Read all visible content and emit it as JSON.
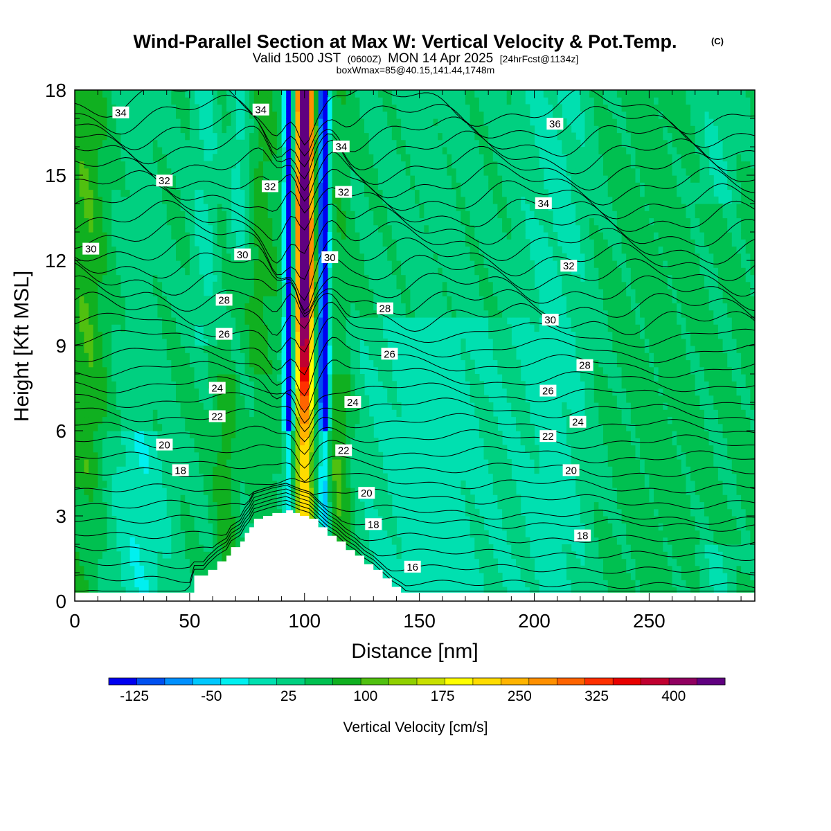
{
  "title": {
    "main": "Wind-Parallel Section at Max W: Vertical Velocity & Pot.Temp.",
    "copyright": "(C)",
    "valid_prefix": "Valid 1500 JST",
    "valid_utc": "(0600Z)",
    "valid_date": "MON 14 Apr 2025",
    "forecast": "[24hrFcst@1134z]",
    "box_info": "boxWmax=85@40.15,141.44,1748m"
  },
  "chart_data": {
    "type": "heatmap",
    "xlabel": "Distance [nm]",
    "ylabel": "Height [Kft MSL]",
    "xlim": [
      0,
      296
    ],
    "ylim": [
      0,
      18
    ],
    "x_ticks": [
      0,
      50,
      100,
      150,
      200,
      250
    ],
    "y_ticks": [
      0,
      3,
      6,
      9,
      12,
      15,
      18
    ],
    "colorbar": {
      "label": "Vertical Velocity [cm/s]",
      "range": [
        -150,
        450
      ],
      "step": 25,
      "tick_labels": [
        "-125",
        "-50",
        "25",
        "100",
        "175",
        "250",
        "325",
        "400"
      ],
      "tick_values": [
        -125,
        -50,
        25,
        100,
        175,
        250,
        325,
        400
      ],
      "colors": [
        "#0000f0",
        "#0050f0",
        "#0090ff",
        "#00c8ff",
        "#00f0f0",
        "#00e0b0",
        "#00d080",
        "#00c050",
        "#10b020",
        "#50c010",
        "#90d000",
        "#c8e000",
        "#ffff00",
        "#ffdc00",
        "#ffb400",
        "#ff9000",
        "#ff6400",
        "#ff3000",
        "#e80000",
        "#c00030",
        "#900060",
        "#600080"
      ]
    },
    "terrain": {
      "x": [
        46,
        50,
        52,
        56,
        58,
        62,
        66,
        68,
        72,
        74,
        76,
        78,
        82,
        86,
        92,
        95,
        98,
        102,
        106,
        110,
        114,
        118,
        122,
        126,
        130,
        134,
        138,
        142,
        146
      ],
      "top": [
        0,
        0.3,
        0.9,
        0.9,
        1.1,
        1.4,
        1.6,
        1.9,
        2.1,
        2.4,
        2.6,
        2.9,
        3.0,
        3.1,
        3.2,
        3.1,
        3.0,
        2.9,
        2.6,
        2.3,
        2.1,
        1.8,
        1.6,
        1.3,
        1.1,
        0.8,
        0.5,
        0.3,
        0
      ]
    },
    "theta_labels": [
      {
        "text": "34",
        "x": 20,
        "y": 17.2
      },
      {
        "text": "34",
        "x": 81,
        "y": 17.3
      },
      {
        "text": "34",
        "x": 116,
        "y": 16.0
      },
      {
        "text": "36",
        "x": 209,
        "y": 16.8
      },
      {
        "text": "32",
        "x": 39,
        "y": 14.8
      },
      {
        "text": "32",
        "x": 85,
        "y": 14.6
      },
      {
        "text": "32",
        "x": 117,
        "y": 14.4
      },
      {
        "text": "34",
        "x": 204,
        "y": 14.0
      },
      {
        "text": "30",
        "x": 7,
        "y": 12.4
      },
      {
        "text": "30",
        "x": 73,
        "y": 12.2
      },
      {
        "text": "30",
        "x": 111,
        "y": 12.1
      },
      {
        "text": "32",
        "x": 215,
        "y": 11.8
      },
      {
        "text": "28",
        "x": 65,
        "y": 10.6
      },
      {
        "text": "28",
        "x": 135,
        "y": 10.3
      },
      {
        "text": "30",
        "x": 207,
        "y": 9.9
      },
      {
        "text": "26",
        "x": 65,
        "y": 9.4
      },
      {
        "text": "26",
        "x": 137,
        "y": 8.7
      },
      {
        "text": "28",
        "x": 222,
        "y": 8.3
      },
      {
        "text": "24",
        "x": 62,
        "y": 7.5
      },
      {
        "text": "24",
        "x": 121,
        "y": 7.0
      },
      {
        "text": "26",
        "x": 206,
        "y": 7.4
      },
      {
        "text": "22",
        "x": 62,
        "y": 6.5
      },
      {
        "text": "24",
        "x": 219,
        "y": 6.3
      },
      {
        "text": "22",
        "x": 206,
        "y": 5.8
      },
      {
        "text": "20",
        "x": 39,
        "y": 5.5
      },
      {
        "text": "22",
        "x": 117,
        "y": 5.3
      },
      {
        "text": "18",
        "x": 46,
        "y": 4.6
      },
      {
        "text": "20",
        "x": 216,
        "y": 4.6
      },
      {
        "text": "20",
        "x": 127,
        "y": 3.8
      },
      {
        "text": "18",
        "x": 130,
        "y": 2.7
      },
      {
        "text": "18",
        "x": 221,
        "y": 2.3
      },
      {
        "text": "16",
        "x": 147,
        "y": 1.2
      }
    ]
  }
}
